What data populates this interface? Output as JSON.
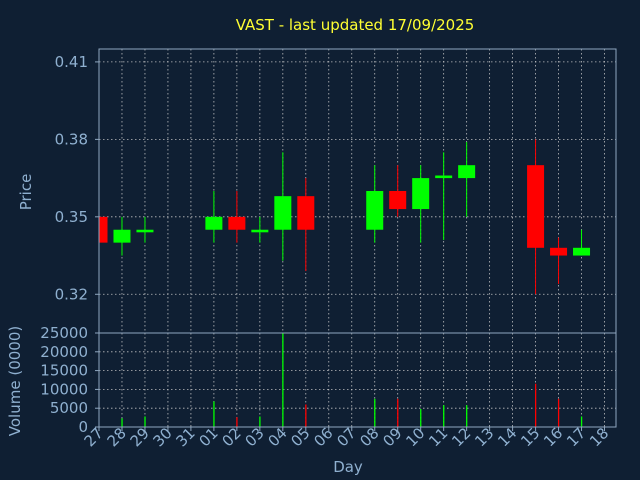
{
  "chart_data": [
    {
      "type": "candlestick",
      "title": "VAST - last updated 17/09/2025",
      "ylabel": "Price",
      "ylim": [
        0.305,
        0.415
      ],
      "yticks": [
        0.32,
        0.35,
        0.38,
        0.41
      ],
      "ytick_labels": [
        "0.32",
        "0.35",
        "0.38",
        "0.41"
      ],
      "grid": true,
      "up_color": "#00ff00",
      "down_color": "#ff0000",
      "x": [
        "27",
        "28",
        "29",
        "30",
        "31",
        "01",
        "02",
        "03",
        "04",
        "05",
        "06",
        "07",
        "08",
        "09",
        "10",
        "11",
        "12",
        "13",
        "14",
        "15",
        "16",
        "17",
        "18"
      ],
      "candles": [
        {
          "day": "27",
          "open": 0.35,
          "high": 0.35,
          "low": 0.34,
          "close": 0.34
        },
        {
          "day": "28",
          "open": 0.34,
          "high": 0.35,
          "low": 0.335,
          "close": 0.345
        },
        {
          "day": "29",
          "open": 0.344,
          "high": 0.35,
          "low": 0.34,
          "close": 0.345
        },
        {
          "day": "01",
          "open": 0.345,
          "high": 0.36,
          "low": 0.34,
          "close": 0.35
        },
        {
          "day": "02",
          "open": 0.35,
          "high": 0.36,
          "low": 0.34,
          "close": 0.345
        },
        {
          "day": "03",
          "open": 0.344,
          "high": 0.35,
          "low": 0.34,
          "close": 0.345
        },
        {
          "day": "04",
          "open": 0.345,
          "high": 0.375,
          "low": 0.333,
          "close": 0.358
        },
        {
          "day": "05",
          "open": 0.358,
          "high": 0.365,
          "low": 0.329,
          "close": 0.345
        },
        {
          "day": "08",
          "open": 0.345,
          "high": 0.37,
          "low": 0.34,
          "close": 0.36
        },
        {
          "day": "09",
          "open": 0.36,
          "high": 0.37,
          "low": 0.35,
          "close": 0.353
        },
        {
          "day": "10",
          "open": 0.353,
          "high": 0.37,
          "low": 0.34,
          "close": 0.365
        },
        {
          "day": "11",
          "open": 0.365,
          "high": 0.375,
          "low": 0.341,
          "close": 0.366
        },
        {
          "day": "12",
          "open": 0.365,
          "high": 0.379,
          "low": 0.35,
          "close": 0.37
        },
        {
          "day": "15",
          "open": 0.37,
          "high": 0.38,
          "low": 0.32,
          "close": 0.338
        },
        {
          "day": "16",
          "open": 0.338,
          "high": 0.342,
          "low": 0.324,
          "close": 0.335
        },
        {
          "day": "17",
          "open": 0.335,
          "high": 0.345,
          "low": 0.335,
          "close": 0.338
        }
      ]
    },
    {
      "type": "bar",
      "xlabel": "Day",
      "ylabel": "Volume (0000)",
      "ylim": [
        0,
        25000
      ],
      "yticks": [
        0,
        5000,
        10000,
        15000,
        20000,
        25000
      ],
      "ytick_labels": [
        "0",
        "5000",
        "10000",
        "15000",
        "20000",
        "25000"
      ],
      "grid": true,
      "categories": [
        "28",
        "29",
        "01",
        "02",
        "03",
        "04",
        "05",
        "08",
        "09",
        "10",
        "11",
        "12",
        "15",
        "16",
        "17"
      ],
      "values": [
        2300,
        2800,
        6800,
        2600,
        2800,
        25000,
        6000,
        7500,
        7500,
        4800,
        5800,
        5800,
        11500,
        7500,
        2800
      ],
      "colors": [
        "#00ff00",
        "#00ff00",
        "#00ff00",
        "#ff0000",
        "#00ff00",
        "#00ff00",
        "#ff0000",
        "#00ff00",
        "#ff0000",
        "#00ff00",
        "#00ff00",
        "#00ff00",
        "#ff0000",
        "#ff0000",
        "#00ff00"
      ]
    }
  ]
}
